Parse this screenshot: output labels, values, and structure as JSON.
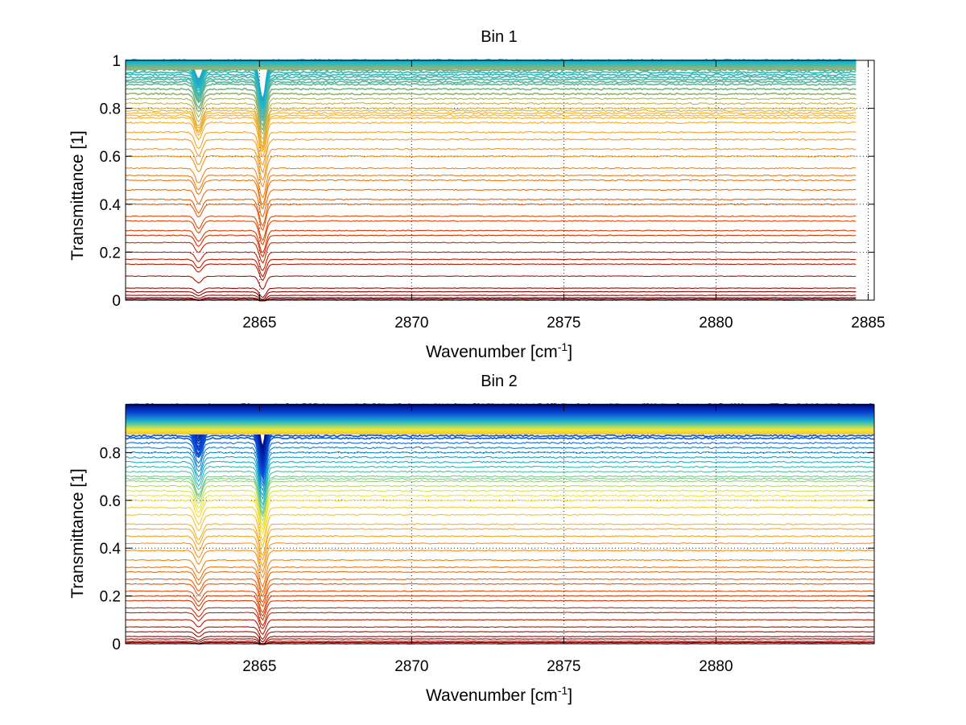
{
  "chart_data": [
    {
      "type": "line",
      "title": "Bin 1",
      "xlabel": "Wavenumber [cm",
      "xlabel_sup": "-1",
      "xlabel_tail": "]",
      "ylabel": "Transmittance [1]",
      "xlim": [
        2860.6,
        2885.2
      ],
      "ylim": [
        0,
        1
      ],
      "xticks": [
        2865,
        2870,
        2875,
        2880,
        2885
      ],
      "yticks": [
        0,
        0.2,
        0.4,
        0.6,
        0.8,
        1
      ],
      "ytick_labels": [
        "0",
        "0.2",
        "0.4",
        "0.6",
        "0.8",
        "1"
      ],
      "x_end": 2884.6,
      "grid": true,
      "absorption_lines": [
        {
          "x": 2863.0,
          "depth": 0.055,
          "width": 0.16
        },
        {
          "x": 2865.1,
          "depth": 0.11,
          "width": 0.15
        }
      ],
      "series_levels": [
        0.0,
        0.005,
        0.01,
        0.02,
        0.035,
        0.05,
        0.1,
        0.15,
        0.17,
        0.2,
        0.24,
        0.27,
        0.29,
        0.33,
        0.35,
        0.4,
        0.42,
        0.46,
        0.5,
        0.52,
        0.55,
        0.6,
        0.63,
        0.67,
        0.7,
        0.74,
        0.76,
        0.77,
        0.78,
        0.79,
        0.8,
        0.82,
        0.84,
        0.86,
        0.88,
        0.9,
        0.91,
        0.92,
        0.93,
        0.94,
        0.95,
        0.96,
        0.965,
        0.97,
        0.975,
        0.98,
        0.985,
        0.99,
        0.995,
        1.0
      ],
      "colormap": [
        "#8b0000",
        "#c81e00",
        "#e8560a",
        "#f28c1a",
        "#f7b02a",
        "#1fb8c8",
        "#0a4fd8",
        "#00108c"
      ],
      "color_range": [
        0,
        1.35
      ]
    },
    {
      "type": "line",
      "title": "Bin 2",
      "xlabel": "Wavenumber [cm",
      "xlabel_sup": "-1",
      "xlabel_tail": "]",
      "ylabel": "Transmittance [1]",
      "xlim": [
        2860.6,
        2885.2
      ],
      "ylim": [
        0,
        1
      ],
      "xticks": [
        2865,
        2870,
        2875,
        2880
      ],
      "yticks": [
        0,
        0.2,
        0.4,
        0.6,
        0.8
      ],
      "ytick_labels": [
        "0",
        "0.2",
        "0.4",
        "0.6",
        "0.8"
      ],
      "x_end": 2885.2,
      "grid": true,
      "absorption_lines": [
        {
          "x": 2863.0,
          "depth": 0.06,
          "width": 0.16
        },
        {
          "x": 2865.1,
          "depth": 0.12,
          "width": 0.15
        }
      ],
      "series_levels": [
        0.0,
        0.005,
        0.01,
        0.02,
        0.03,
        0.05,
        0.07,
        0.1,
        0.13,
        0.15,
        0.18,
        0.2,
        0.22,
        0.25,
        0.27,
        0.3,
        0.32,
        0.35,
        0.39,
        0.42,
        0.45,
        0.48,
        0.5,
        0.54,
        0.57,
        0.6,
        0.62,
        0.64,
        0.66,
        0.68,
        0.69,
        0.7,
        0.72,
        0.74,
        0.76,
        0.78,
        0.8,
        0.82,
        0.84,
        0.86,
        0.87,
        0.88,
        0.89,
        0.9,
        0.91,
        0.92,
        0.93,
        0.94,
        0.95,
        0.96,
        0.97,
        0.98,
        0.99,
        1.0
      ],
      "colormap": [
        "#8b0000",
        "#c81e00",
        "#e8560a",
        "#f28c1a",
        "#f7b02a",
        "#f2e83a",
        "#1fb8c8",
        "#0a4fd8",
        "#00108c"
      ],
      "color_range": [
        0,
        1.0
      ]
    }
  ]
}
